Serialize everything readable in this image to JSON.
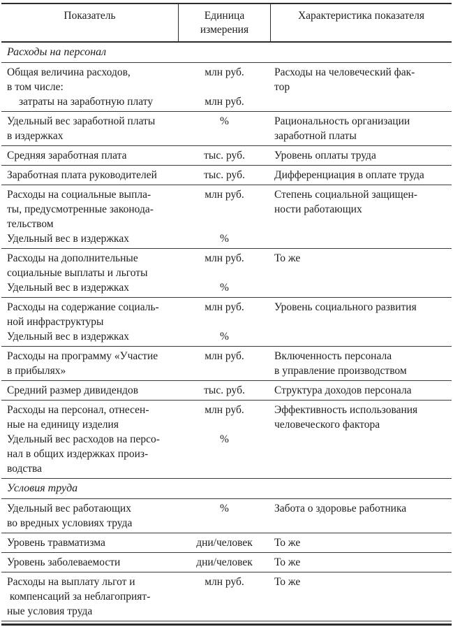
{
  "table": {
    "header": {
      "col1": "Показатель",
      "col2": "Единица\nизмерения",
      "col3": "Характеристика показателя"
    },
    "rows": [
      {
        "type": "section",
        "label": "Расходы на персонал"
      },
      {
        "type": "row",
        "segments": [
          {
            "name": "Общая величина расходов,\nв том числе:",
            "unit": "млн руб.",
            "indent": false
          },
          {
            "name": "затраты на заработную плату",
            "unit": "млн руб.",
            "indent": true
          }
        ],
        "characteristic": "Расходы на человеческий фак-\nтор"
      },
      {
        "type": "row",
        "segments": [
          {
            "name": "Удельный вес заработной платы\nв издержках",
            "unit": "%",
            "indent": false
          }
        ],
        "characteristic": "Рациональность организации\nзаработной платы"
      },
      {
        "type": "row",
        "segments": [
          {
            "name": "Средняя заработная плата",
            "unit": "тыс. руб.",
            "indent": false
          }
        ],
        "characteristic": "Уровень оплаты труда"
      },
      {
        "type": "row",
        "segments": [
          {
            "name": "Заработная плата руководителей",
            "unit": "тыс. руб.",
            "indent": false
          }
        ],
        "characteristic": "Дифференциация в оплате труда"
      },
      {
        "type": "row",
        "segments": [
          {
            "name": "Расходы на социальные выпла-\nты, предусмотренные законода-\nтельством",
            "unit": "млн руб.",
            "indent": false
          },
          {
            "name": "Удельный вес в издержках",
            "unit": "%",
            "indent": false
          }
        ],
        "characteristic": "Степень социальной защищен-\nности работающих"
      },
      {
        "type": "row",
        "segments": [
          {
            "name": "Расходы на дополнительные\nсоциальные выплаты и льготы",
            "unit": "млн руб.",
            "indent": false
          },
          {
            "name": "Удельный вес в издержках",
            "unit": "%",
            "indent": false
          }
        ],
        "characteristic": "То же"
      },
      {
        "type": "row",
        "segments": [
          {
            "name": "Расходы на содержание социаль-\nной инфраструктуры",
            "unit": "млн руб.",
            "indent": false
          },
          {
            "name": "Удельный вес в издержках",
            "unit": "%",
            "indent": false
          }
        ],
        "characteristic": "Уровень социального развития"
      },
      {
        "type": "row",
        "segments": [
          {
            "name": "Расходы на программу «Участие\nв прибылях»",
            "unit": "млн руб.",
            "indent": false
          }
        ],
        "characteristic": "Включенность персонала\nв управление производством"
      },
      {
        "type": "row",
        "segments": [
          {
            "name": "Средний размер дивидендов",
            "unit": "тыс. руб.",
            "indent": false
          }
        ],
        "characteristic": "Структура доходов персонала"
      },
      {
        "type": "row",
        "segments": [
          {
            "name": "Расходы на персонал, отнесен-\nные на единицу изделия",
            "unit": "млн руб.",
            "indent": false
          },
          {
            "name": "Удельный вес расходов на персо-\nнал в общих издержках произ-\nводства",
            "unit": "%",
            "indent": false
          }
        ],
        "characteristic": "Эффективность использования\nчеловеческого фактора"
      },
      {
        "type": "section",
        "label": "Условия труда"
      },
      {
        "type": "row",
        "segments": [
          {
            "name": "Удельный вес работающих\nво вредных условиях труда",
            "unit": "%",
            "indent": false
          }
        ],
        "characteristic": "Забота о здоровье работника"
      },
      {
        "type": "row",
        "segments": [
          {
            "name": "Уровень травматизма",
            "unit": "дни/человек",
            "indent": false
          }
        ],
        "characteristic": "То же"
      },
      {
        "type": "row",
        "segments": [
          {
            "name": "Уровень заболеваемости",
            "unit": "дни/человек",
            "indent": false
          }
        ],
        "characteristic": "То же"
      },
      {
        "type": "row",
        "segments": [
          {
            "name": "Расходы на выплату льгот и\n компенсаций за неблагоприят-\nные условия труда",
            "unit": "млн руб.",
            "indent": false
          }
        ],
        "characteristic": "То же"
      }
    ]
  }
}
